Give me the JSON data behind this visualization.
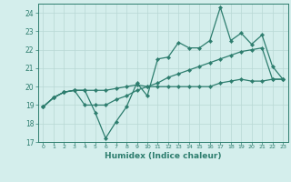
{
  "xlabel": "Humidex (Indice chaleur)",
  "x_values": [
    0,
    1,
    2,
    3,
    4,
    5,
    6,
    7,
    8,
    9,
    10,
    11,
    12,
    13,
    14,
    15,
    16,
    17,
    18,
    19,
    20,
    21,
    22,
    23
  ],
  "line1": [
    18.9,
    19.4,
    19.7,
    19.8,
    19.8,
    18.6,
    17.2,
    18.1,
    18.9,
    20.2,
    19.5,
    21.5,
    21.6,
    22.4,
    22.1,
    22.1,
    22.5,
    24.3,
    22.5,
    22.9,
    22.3,
    22.8,
    21.1,
    20.4
  ],
  "line2": [
    18.9,
    19.4,
    19.7,
    19.8,
    19.0,
    19.0,
    19.0,
    19.3,
    19.5,
    19.8,
    20.0,
    20.2,
    20.5,
    20.7,
    20.9,
    21.1,
    21.3,
    21.5,
    21.7,
    21.9,
    22.0,
    22.1,
    20.4,
    20.4
  ],
  "line3": [
    18.9,
    19.4,
    19.7,
    19.8,
    19.8,
    19.8,
    19.8,
    19.9,
    20.0,
    20.1,
    20.0,
    20.0,
    20.0,
    20.0,
    20.0,
    20.0,
    20.0,
    20.2,
    20.3,
    20.4,
    20.3,
    20.3,
    20.4,
    20.4
  ],
  "line_color": "#2d7d6e",
  "bg_color": "#d4eeec",
  "grid_color": "#b8d8d5",
  "ylim": [
    17,
    24.5
  ],
  "yticks": [
    17,
    18,
    19,
    20,
    21,
    22,
    23,
    24
  ],
  "xlim": [
    -0.5,
    23.5
  ],
  "marker": "D",
  "markersize": 2.2,
  "linewidth": 0.9
}
